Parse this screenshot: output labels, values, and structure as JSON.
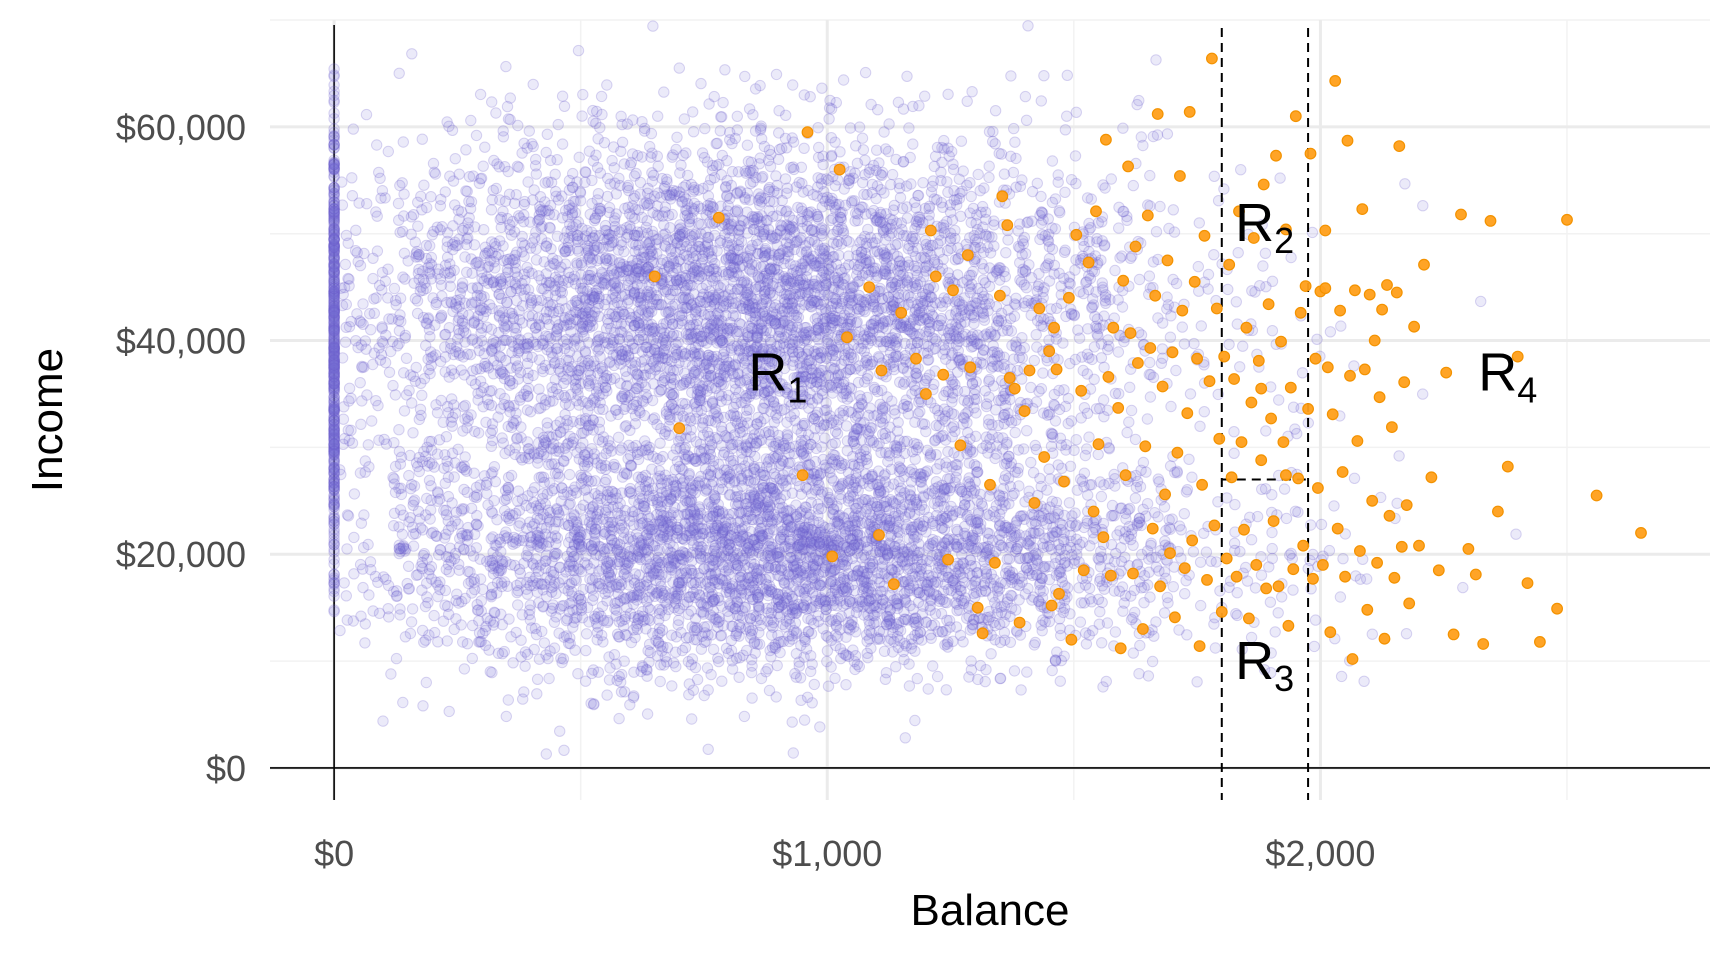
{
  "chart_data": {
    "type": "scatter",
    "title": "",
    "xlabel": "Balance",
    "ylabel": "Income",
    "xlim": [
      -130,
      2790
    ],
    "ylim": [
      -3000,
      70000
    ],
    "x_ticks": [
      0,
      1000,
      2000
    ],
    "x_tick_labels": [
      "$0",
      "$1,000",
      "$2,000"
    ],
    "y_ticks": [
      0,
      20000,
      40000,
      60000
    ],
    "y_tick_labels": [
      "$0",
      "$20,000",
      "$40,000",
      "$60,000"
    ],
    "grid": true,
    "legend": "none",
    "colors": {
      "default_points": "#7a6fd9",
      "default_points_opacity": 0.15,
      "default_points_outline": "#6a5acd",
      "default_points_outline_opacity": 0.25,
      "default_fill": "#ff9f1a",
      "default_fill_outline": "#f39200",
      "grid_major": "#ebebeb",
      "grid_minor": "#f2f2f2",
      "split_lines": "#000000"
    },
    "splits": {
      "balance_1": 1800,
      "balance_2": 1975,
      "income": 27000
    },
    "regions": [
      {
        "label": "R",
        "sub": "1",
        "x": 900,
        "y": 37000
      },
      {
        "label": "R",
        "sub": "2",
        "x": 1887,
        "y": 51000
      },
      {
        "label": "R",
        "sub": "3",
        "x": 1887,
        "y": 10000
      },
      {
        "label": "R",
        "sub": "4",
        "x": 2380,
        "y": 37000
      }
    ],
    "series": [
      {
        "name": "",
        "role": "no_default",
        "n_points": 9667,
        "balance_zero_count": 499,
        "clusters": [
          {
            "balance_mean": 820,
            "balance_sd": 420,
            "income_mean": 43000,
            "income_sd": 8000,
            "weight": 0.55
          },
          {
            "balance_mean": 900,
            "balance_sd": 420,
            "income_mean": 20000,
            "income_sd": 5500,
            "weight": 0.45
          }
        ],
        "balance_max": 2450,
        "income_range": [
          800,
          73000
        ]
      },
      {
        "name": "",
        "role": "default",
        "points": [
          [
            650,
            46000
          ],
          [
            700,
            31800
          ],
          [
            780,
            51500
          ],
          [
            950,
            27400
          ],
          [
            960,
            59500
          ],
          [
            1010,
            19800
          ],
          [
            1025,
            56000
          ],
          [
            1040,
            40300
          ],
          [
            1085,
            45000
          ],
          [
            1105,
            21800
          ],
          [
            1110,
            37200
          ],
          [
            1135,
            17200
          ],
          [
            1150,
            42600
          ],
          [
            1180,
            38300
          ],
          [
            1200,
            35000
          ],
          [
            1210,
            50300
          ],
          [
            1220,
            46000
          ],
          [
            1235,
            36800
          ],
          [
            1245,
            19500
          ],
          [
            1255,
            44700
          ],
          [
            1270,
            30200
          ],
          [
            1285,
            48000
          ],
          [
            1290,
            37500
          ],
          [
            1305,
            15000
          ],
          [
            1315,
            12600
          ],
          [
            1330,
            26500
          ],
          [
            1340,
            19200
          ],
          [
            1350,
            44200
          ],
          [
            1355,
            53500
          ],
          [
            1365,
            50800
          ],
          [
            1370,
            36500
          ],
          [
            1380,
            35500
          ],
          [
            1390,
            13600
          ],
          [
            1400,
            33400
          ],
          [
            1410,
            37200
          ],
          [
            1420,
            24800
          ],
          [
            1430,
            43000
          ],
          [
            1440,
            29100
          ],
          [
            1450,
            39000
          ],
          [
            1455,
            15200
          ],
          [
            1460,
            41200
          ],
          [
            1465,
            37300
          ],
          [
            1470,
            16300
          ],
          [
            1480,
            26800
          ],
          [
            1490,
            44000
          ],
          [
            1495,
            12000
          ],
          [
            1505,
            49900
          ],
          [
            1515,
            35300
          ],
          [
            1520,
            18500
          ],
          [
            1530,
            47300
          ],
          [
            1540,
            24000
          ],
          [
            1545,
            52100
          ],
          [
            1550,
            30300
          ],
          [
            1560,
            21600
          ],
          [
            1565,
            58800
          ],
          [
            1570,
            36600
          ],
          [
            1575,
            18000
          ],
          [
            1580,
            41200
          ],
          [
            1590,
            33700
          ],
          [
            1595,
            11200
          ],
          [
            1600,
            45600
          ],
          [
            1605,
            27400
          ],
          [
            1610,
            56300
          ],
          [
            1615,
            40700
          ],
          [
            1620,
            18200
          ],
          [
            1625,
            48800
          ],
          [
            1630,
            37900
          ],
          [
            1640,
            13000
          ],
          [
            1645,
            30100
          ],
          [
            1650,
            51700
          ],
          [
            1655,
            39300
          ],
          [
            1660,
            22400
          ],
          [
            1665,
            44200
          ],
          [
            1670,
            61200
          ],
          [
            1675,
            17000
          ],
          [
            1680,
            35700
          ],
          [
            1685,
            25600
          ],
          [
            1690,
            47500
          ],
          [
            1695,
            20100
          ],
          [
            1700,
            38900
          ],
          [
            1705,
            14100
          ],
          [
            1710,
            29500
          ],
          [
            1715,
            55400
          ],
          [
            1720,
            42800
          ],
          [
            1725,
            18700
          ],
          [
            1730,
            33200
          ],
          [
            1735,
            61400
          ],
          [
            1740,
            21300
          ],
          [
            1745,
            45500
          ],
          [
            1750,
            38300
          ],
          [
            1755,
            11400
          ],
          [
            1760,
            26500
          ],
          [
            1765,
            49800
          ],
          [
            1770,
            17600
          ],
          [
            1775,
            36200
          ],
          [
            1780,
            66400
          ],
          [
            1785,
            22700
          ],
          [
            1790,
            43000
          ],
          [
            1795,
            30800
          ],
          [
            1800,
            14600
          ],
          [
            1805,
            38500
          ],
          [
            1810,
            19600
          ],
          [
            1815,
            47100
          ],
          [
            1820,
            27200
          ],
          [
            1825,
            36400
          ],
          [
            1830,
            17900
          ],
          [
            1835,
            52100
          ],
          [
            1840,
            30500
          ],
          [
            1845,
            22300
          ],
          [
            1850,
            41200
          ],
          [
            1855,
            14000
          ],
          [
            1860,
            34200
          ],
          [
            1865,
            49600
          ],
          [
            1870,
            19000
          ],
          [
            1875,
            38100
          ],
          [
            1880,
            28800
          ],
          [
            1885,
            54600
          ],
          [
            1890,
            16800
          ],
          [
            1895,
            43400
          ],
          [
            1900,
            32700
          ],
          [
            1905,
            23100
          ],
          [
            1910,
            57300
          ],
          [
            1915,
            17000
          ],
          [
            1920,
            39900
          ],
          [
            1925,
            30500
          ],
          [
            1930,
            50400
          ],
          [
            1935,
            13300
          ],
          [
            1940,
            35600
          ],
          [
            1945,
            18600
          ],
          [
            1950,
            61000
          ],
          [
            1955,
            27100
          ],
          [
            1960,
            42600
          ],
          [
            1965,
            20800
          ],
          [
            1970,
            45100
          ],
          [
            1975,
            33600
          ],
          [
            1980,
            57500
          ],
          [
            1985,
            17700
          ],
          [
            1990,
            38300
          ],
          [
            1995,
            26200
          ],
          [
            2000,
            44600
          ],
          [
            2005,
            19000
          ],
          [
            2010,
            50300
          ],
          [
            2015,
            37500
          ],
          [
            2020,
            12700
          ],
          [
            2025,
            33100
          ],
          [
            2030,
            64300
          ],
          [
            2035,
            22400
          ],
          [
            2040,
            42800
          ],
          [
            2045,
            27700
          ],
          [
            2050,
            17900
          ],
          [
            2055,
            58700
          ],
          [
            2060,
            36700
          ],
          [
            2065,
            10200
          ],
          [
            2070,
            44700
          ],
          [
            2075,
            30600
          ],
          [
            2080,
            20300
          ],
          [
            2085,
            52300
          ],
          [
            2090,
            37300
          ],
          [
            2095,
            14800
          ],
          [
            2100,
            44300
          ],
          [
            2105,
            25000
          ],
          [
            2110,
            40000
          ],
          [
            2115,
            19200
          ],
          [
            2120,
            34700
          ],
          [
            2125,
            42900
          ],
          [
            2130,
            12100
          ],
          [
            2135,
            45200
          ],
          [
            2140,
            23600
          ],
          [
            2145,
            31900
          ],
          [
            2150,
            17800
          ],
          [
            2155,
            44500
          ],
          [
            2160,
            58200
          ],
          [
            2165,
            20700
          ],
          [
            2170,
            36100
          ],
          [
            2175,
            24600
          ],
          [
            2180,
            15400
          ],
          [
            2190,
            41300
          ],
          [
            2200,
            20800
          ],
          [
            2210,
            47100
          ],
          [
            2225,
            27200
          ],
          [
            2240,
            18500
          ],
          [
            2255,
            37000
          ],
          [
            2270,
            12500
          ],
          [
            2285,
            51800
          ],
          [
            2300,
            20500
          ],
          [
            2315,
            18100
          ],
          [
            2330,
            11600
          ],
          [
            2345,
            51200
          ],
          [
            2360,
            24000
          ],
          [
            2380,
            28200
          ],
          [
            2400,
            38500
          ],
          [
            2420,
            17300
          ],
          [
            2445,
            11800
          ],
          [
            2480,
            14900
          ],
          [
            2500,
            51300
          ],
          [
            2560,
            25500
          ],
          [
            2650,
            22000
          ],
          [
            1880,
            35500
          ],
          [
            1930,
            27400
          ],
          [
            2010,
            44900
          ]
        ]
      }
    ]
  }
}
